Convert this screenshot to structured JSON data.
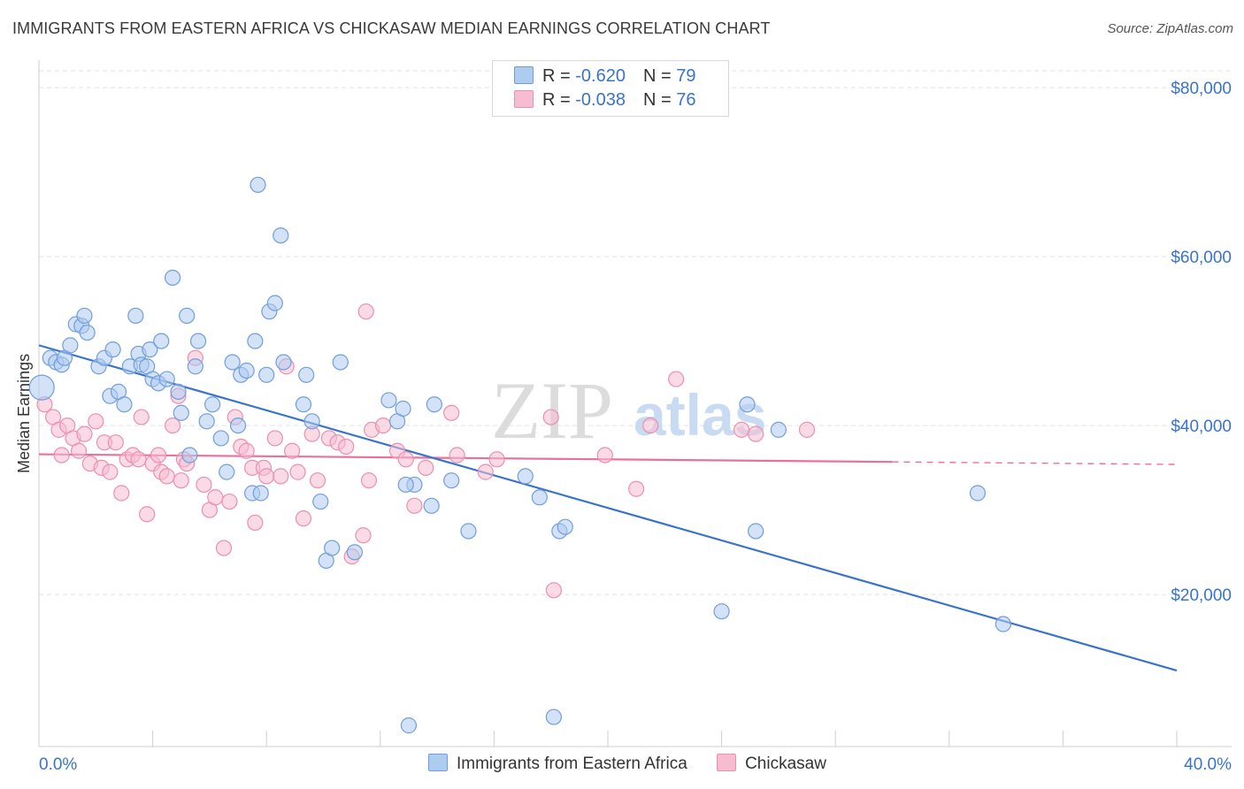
{
  "title": "IMMIGRANTS FROM EASTERN AFRICA VS CHICKASAW MEDIAN EARNINGS CORRELATION CHART",
  "source": "Source: ZipAtlas.com",
  "watermark": {
    "zip": "ZIP",
    "atlas": "atlas"
  },
  "colors": {
    "blue": "#3a74c8",
    "blue_fill": "#aecbf0",
    "blue_stroke": "#6f9fdb",
    "pink": "#e8709a",
    "pink_fill": "#f6bdd0",
    "pink_stroke": "#eb8fae",
    "axis_label": "#3a74c8",
    "grid": "#e2e2e2"
  },
  "legend": {
    "rows": [
      {
        "r_label": "R = ",
        "r_value": "-0.620",
        "n_label": "N = ",
        "n_value": "79"
      },
      {
        "r_label": "R = ",
        "r_value": "-0.038",
        "n_label": "N = ",
        "n_value": "76"
      }
    ]
  },
  "bottom_legend": {
    "series1": "Immigrants from Eastern Africa",
    "series2": "Chickasaw"
  },
  "chart_data": {
    "type": "scatter",
    "title": "IMMIGRANTS FROM EASTERN AFRICA VS CHICKASAW MEDIAN EARNINGS CORRELATION CHART",
    "xlabel": "",
    "ylabel": "Median Earnings",
    "xlim": [
      0,
      40
    ],
    "ylim": [
      2000,
      82000
    ],
    "x_tick_labels": [
      "0.0%",
      "40.0%"
    ],
    "y_ticks": [
      20000,
      40000,
      60000,
      80000
    ],
    "y_tick_labels": [
      "$20,000",
      "$40,000",
      "$60,000",
      "$80,000"
    ],
    "grid": true,
    "legend_position": "top-center",
    "series": [
      {
        "name": "Immigrants from Eastern Africa",
        "color": "#3a74c8",
        "trend": {
          "x": [
            0,
            40
          ],
          "y": [
            49500,
            11000
          ]
        },
        "points": [
          [
            0.1,
            44500
          ],
          [
            0.4,
            48000
          ],
          [
            0.6,
            47500
          ],
          [
            0.8,
            47200
          ],
          [
            0.9,
            48000
          ],
          [
            1.1,
            49500
          ],
          [
            1.3,
            52000
          ],
          [
            1.5,
            51800
          ],
          [
            1.6,
            53000
          ],
          [
            1.7,
            51000
          ],
          [
            2.1,
            47000
          ],
          [
            2.3,
            48000
          ],
          [
            2.5,
            43500
          ],
          [
            2.6,
            49000
          ],
          [
            2.8,
            44000
          ],
          [
            3.0,
            42500
          ],
          [
            3.2,
            47000
          ],
          [
            3.4,
            53000
          ],
          [
            3.5,
            48500
          ],
          [
            3.6,
            47200
          ],
          [
            3.8,
            47000
          ],
          [
            3.9,
            49000
          ],
          [
            4.0,
            45500
          ],
          [
            4.2,
            45000
          ],
          [
            4.3,
            50000
          ],
          [
            4.5,
            45500
          ],
          [
            4.7,
            57500
          ],
          [
            4.9,
            44000
          ],
          [
            5.0,
            41500
          ],
          [
            5.2,
            53000
          ],
          [
            5.3,
            36500
          ],
          [
            5.5,
            47000
          ],
          [
            5.6,
            50000
          ],
          [
            5.9,
            40500
          ],
          [
            6.1,
            42500
          ],
          [
            6.4,
            38500
          ],
          [
            6.6,
            34500
          ],
          [
            6.8,
            47500
          ],
          [
            7.0,
            40000
          ],
          [
            7.1,
            46000
          ],
          [
            7.3,
            46500
          ],
          [
            7.5,
            32000
          ],
          [
            7.6,
            50000
          ],
          [
            7.8,
            32000
          ],
          [
            7.7,
            68500
          ],
          [
            8.0,
            46000
          ],
          [
            8.1,
            53500
          ],
          [
            8.3,
            54500
          ],
          [
            8.5,
            62500
          ],
          [
            8.6,
            47500
          ],
          [
            9.3,
            42500
          ],
          [
            9.4,
            46000
          ],
          [
            9.6,
            40500
          ],
          [
            9.9,
            31000
          ],
          [
            10.1,
            24000
          ],
          [
            10.3,
            25500
          ],
          [
            10.6,
            47500
          ],
          [
            11.1,
            25000
          ],
          [
            12.3,
            43000
          ],
          [
            12.6,
            40500
          ],
          [
            13.2,
            33000
          ],
          [
            13.8,
            30500
          ],
          [
            13.9,
            42500
          ],
          [
            14.5,
            33500
          ],
          [
            15.1,
            27500
          ],
          [
            17.1,
            34000
          ],
          [
            17.6,
            31500
          ],
          [
            18.1,
            5500
          ],
          [
            18.3,
            27500
          ],
          [
            18.5,
            28000
          ],
          [
            24.0,
            18000
          ],
          [
            24.9,
            42500
          ],
          [
            25.2,
            27500
          ],
          [
            26.0,
            39500
          ],
          [
            33.0,
            32000
          ],
          [
            33.9,
            16500
          ],
          [
            13.0,
            4500
          ],
          [
            12.9,
            33000
          ],
          [
            12.8,
            42000
          ]
        ]
      },
      {
        "name": "Chickasaw",
        "color": "#e8709a",
        "trend": {
          "x": [
            0,
            30
          ],
          "y": [
            36600,
            35700
          ]
        },
        "trend_dashed": {
          "x": [
            30,
            40
          ],
          "y": [
            35700,
            35400
          ]
        },
        "points": [
          [
            0.2,
            42500
          ],
          [
            0.5,
            41000
          ],
          [
            0.7,
            39500
          ],
          [
            0.8,
            36500
          ],
          [
            1.0,
            40000
          ],
          [
            1.2,
            38500
          ],
          [
            1.4,
            37000
          ],
          [
            1.6,
            39000
          ],
          [
            1.8,
            35500
          ],
          [
            2.0,
            40500
          ],
          [
            2.2,
            35000
          ],
          [
            2.3,
            38000
          ],
          [
            2.5,
            34500
          ],
          [
            2.7,
            38000
          ],
          [
            2.9,
            32000
          ],
          [
            3.1,
            36000
          ],
          [
            3.3,
            36500
          ],
          [
            3.5,
            36000
          ],
          [
            3.6,
            41000
          ],
          [
            3.8,
            29500
          ],
          [
            4.0,
            35500
          ],
          [
            4.2,
            36500
          ],
          [
            4.3,
            34500
          ],
          [
            4.5,
            34000
          ],
          [
            4.7,
            40000
          ],
          [
            4.9,
            43500
          ],
          [
            5.0,
            33500
          ],
          [
            5.1,
            36000
          ],
          [
            5.5,
            48000
          ],
          [
            5.8,
            33000
          ],
          [
            6.0,
            30000
          ],
          [
            6.2,
            31500
          ],
          [
            6.5,
            25500
          ],
          [
            6.7,
            31000
          ],
          [
            6.9,
            41000
          ],
          [
            7.1,
            37500
          ],
          [
            7.3,
            37000
          ],
          [
            7.5,
            35000
          ],
          [
            7.6,
            28500
          ],
          [
            7.9,
            35000
          ],
          [
            8.0,
            34000
          ],
          [
            8.3,
            38500
          ],
          [
            8.5,
            34000
          ],
          [
            8.7,
            47000
          ],
          [
            8.9,
            37000
          ],
          [
            9.1,
            34500
          ],
          [
            9.3,
            29000
          ],
          [
            9.6,
            39000
          ],
          [
            9.8,
            33500
          ],
          [
            10.2,
            38500
          ],
          [
            10.5,
            38000
          ],
          [
            10.8,
            37500
          ],
          [
            11.0,
            24500
          ],
          [
            11.4,
            27000
          ],
          [
            11.6,
            33500
          ],
          [
            11.7,
            39500
          ],
          [
            12.1,
            40000
          ],
          [
            12.6,
            37000
          ],
          [
            12.9,
            36000
          ],
          [
            13.2,
            30500
          ],
          [
            13.6,
            35000
          ],
          [
            14.5,
            41500
          ],
          [
            14.7,
            36500
          ],
          [
            15.7,
            34500
          ],
          [
            16.1,
            36000
          ],
          [
            18.0,
            41000
          ],
          [
            18.1,
            20500
          ],
          [
            19.9,
            36500
          ],
          [
            21.0,
            32500
          ],
          [
            21.5,
            40000
          ],
          [
            22.4,
            45500
          ],
          [
            24.7,
            39500
          ],
          [
            25.2,
            39000
          ],
          [
            27.0,
            39500
          ],
          [
            11.5,
            53500
          ],
          [
            5.2,
            35500
          ]
        ]
      }
    ]
  }
}
